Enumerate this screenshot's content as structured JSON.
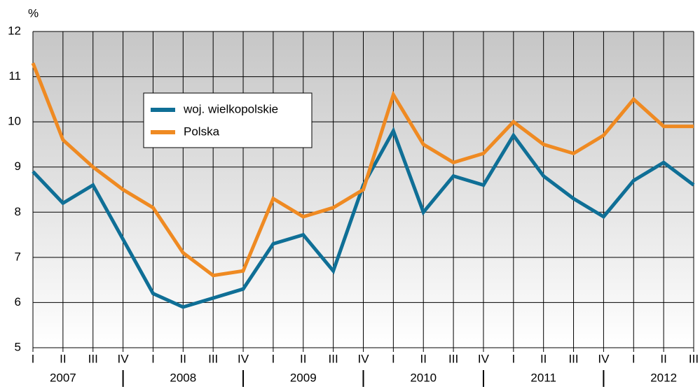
{
  "chart_data": {
    "type": "line",
    "ylabel": "%",
    "categories": [
      "I",
      "II",
      "III",
      "IV",
      "I",
      "II",
      "III",
      "IV",
      "I",
      "II",
      "III",
      "IV",
      "I",
      "II",
      "III",
      "IV",
      "I",
      "II",
      "III",
      "IV",
      "I",
      "II",
      "III"
    ],
    "years": [
      "2007",
      "2008",
      "2009",
      "2010",
      "2011",
      "2012"
    ],
    "series": [
      {
        "name": "woj. wielkopolskie",
        "color": "#0f6f96",
        "values": [
          8.9,
          8.2,
          8.6,
          7.4,
          6.2,
          5.9,
          6.1,
          6.3,
          7.3,
          7.5,
          6.7,
          8.6,
          9.8,
          8.0,
          8.8,
          8.6,
          9.7,
          8.8,
          8.3,
          7.9,
          8.7,
          9.1,
          8.6
        ]
      },
      {
        "name": "Polska",
        "color": "#ef8a22",
        "values": [
          11.3,
          9.6,
          9.0,
          8.5,
          8.1,
          7.1,
          6.6,
          6.7,
          8.3,
          7.9,
          8.1,
          8.5,
          10.6,
          9.5,
          9.1,
          9.3,
          10.0,
          9.5,
          9.3,
          9.7,
          10.5,
          9.9,
          9.9
        ]
      }
    ],
    "ylim": [
      5,
      12
    ],
    "yticks": [
      5,
      6,
      7,
      8,
      9,
      10,
      11,
      12
    ],
    "grid": true
  }
}
